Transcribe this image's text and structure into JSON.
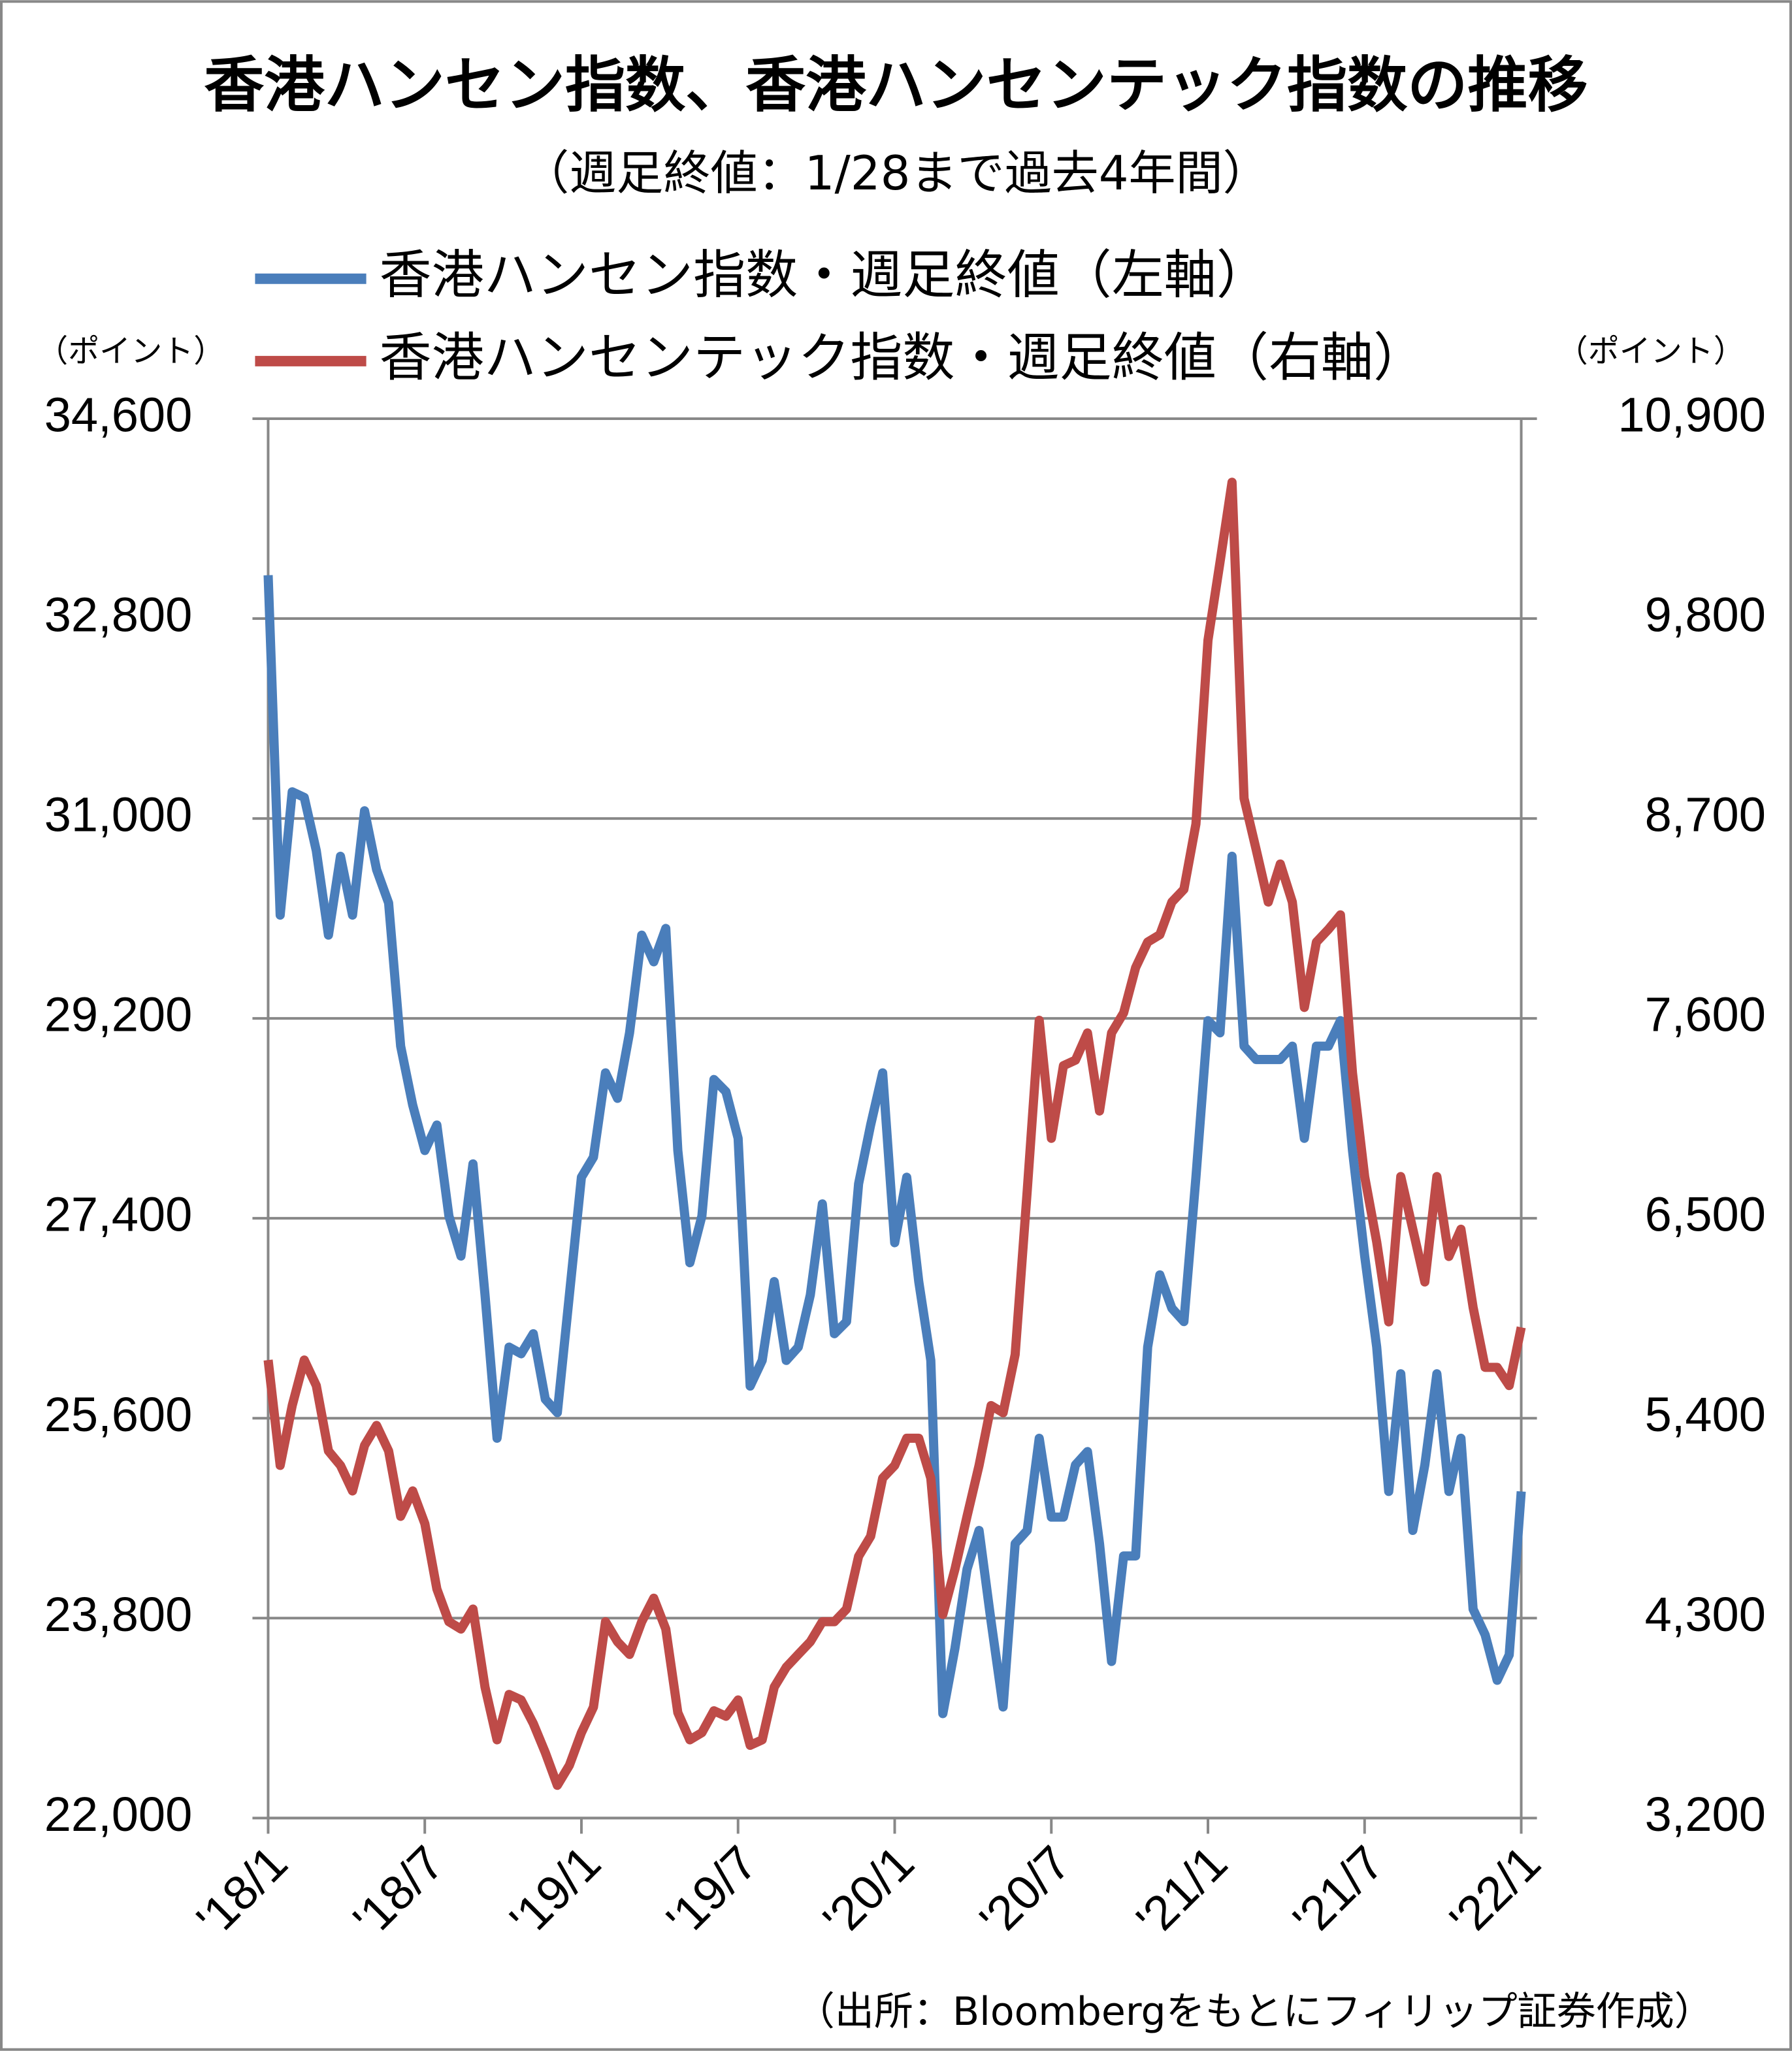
{
  "chart_data": {
    "type": "line",
    "title": "香港ハンセン指数、香港ハンセンテック指数の推移",
    "subtitle": "（週足終値：1/28まで過去4年間）",
    "y_axis_label": "（ポイント）",
    "y2_axis_label": "（ポイント）",
    "source": "（出所：Bloombergをもとにフィリップ証券作成）",
    "categories": [
      "'18/1",
      null,
      null,
      null,
      null,
      null,
      null,
      null,
      null,
      null,
      null,
      null,
      null,
      "'18/7",
      null,
      null,
      null,
      null,
      null,
      null,
      null,
      null,
      null,
      null,
      null,
      null,
      "'19/1",
      null,
      null,
      null,
      null,
      null,
      null,
      null,
      null,
      null,
      null,
      null,
      null,
      "'19/7",
      null,
      null,
      null,
      null,
      null,
      null,
      null,
      null,
      null,
      null,
      null,
      null,
      "'20/1",
      null,
      null,
      null,
      null,
      null,
      null,
      null,
      null,
      null,
      null,
      null,
      null,
      "'20/7",
      null,
      null,
      null,
      null,
      null,
      null,
      null,
      null,
      null,
      null,
      null,
      null,
      "'21/1",
      null,
      null,
      null,
      null,
      null,
      null,
      null,
      null,
      null,
      null,
      null,
      null,
      "'21/7",
      null,
      null,
      null,
      null,
      null,
      null,
      null,
      null,
      null,
      null,
      null,
      null,
      "'22/1"
    ],
    "series": [
      {
        "name": "香港ハンセン指数・週足終値（左軸）",
        "color": "#4a7ebb",
        "axis": "y",
        "values": [
          33190,
          30130,
          31240,
          31190,
          30710,
          29950,
          30660,
          30130,
          31070,
          30540,
          30240,
          28950,
          28420,
          28010,
          28240,
          27420,
          27060,
          27890,
          26710,
          25420,
          26240,
          26180,
          26360,
          25770,
          25650,
          26710,
          27770,
          27950,
          28710,
          28480,
          29070,
          29950,
          29710,
          30010,
          28010,
          27000,
          27420,
          28650,
          28540,
          28120,
          25890,
          26120,
          26830,
          26120,
          26240,
          26710,
          27530,
          26360,
          26470,
          27710,
          28240,
          28710,
          27180,
          27770,
          26830,
          26120,
          22940,
          23530,
          24240,
          24590,
          23770,
          23000,
          24470,
          24590,
          25420,
          24710,
          24710,
          25180,
          25300,
          24470,
          23410,
          24360,
          24360,
          26240,
          26890,
          26590,
          26470,
          27770,
          29180,
          29070,
          30660,
          28950,
          28830,
          28830,
          28830,
          28950,
          28120,
          28950,
          28950,
          29180,
          28010,
          27060,
          26240,
          24940,
          26000,
          24590,
          25180,
          26000,
          24940,
          25420,
          23880,
          23650,
          23240,
          23470,
          24940
        ]
      },
      {
        "name": "香港ハンセンテック指数・週足終値（右軸）",
        "color": "#be4b48",
        "axis": "y2",
        "values": [
          5720,
          5140,
          5470,
          5720,
          5580,
          5220,
          5140,
          5000,
          5250,
          5360,
          5220,
          4860,
          5000,
          4820,
          4460,
          4280,
          4240,
          4350,
          3920,
          3630,
          3880,
          3850,
          3720,
          3560,
          3380,
          3490,
          3670,
          3810,
          4280,
          4170,
          4100,
          4280,
          4410,
          4240,
          3780,
          3630,
          3670,
          3790,
          3760,
          3850,
          3600,
          3630,
          3920,
          4030,
          4100,
          4170,
          4280,
          4280,
          4350,
          4640,
          4750,
          5070,
          5140,
          5290,
          5290,
          5070,
          4320,
          4570,
          4860,
          5140,
          5470,
          5430,
          5750,
          6650,
          7590,
          6940,
          7340,
          7370,
          7520,
          7090,
          7520,
          7630,
          7880,
          8020,
          8060,
          8240,
          8310,
          8670,
          9680,
          10110,
          10550,
          8810,
          8530,
          8240,
          8450,
          8240,
          7660,
          8020,
          8090,
          8170,
          7300,
          6730,
          6370,
          5930,
          6730,
          6440,
          6150,
          6730,
          6290,
          6440,
          6010,
          5680,
          5680,
          5580,
          5900
        ]
      }
    ],
    "ylim": [
      22000,
      34600
    ],
    "yticks": [
      {
        "value": 22000,
        "label": "22,000"
      },
      {
        "value": 23800,
        "label": "23,800"
      },
      {
        "value": 25600,
        "label": "25,600"
      },
      {
        "value": 27400,
        "label": "27,400"
      },
      {
        "value": 29200,
        "label": "29,200"
      },
      {
        "value": 31000,
        "label": "31,000"
      },
      {
        "value": 32800,
        "label": "32,800"
      },
      {
        "value": 34600,
        "label": "34,600"
      }
    ],
    "y2lim": [
      3200,
      10900
    ],
    "y2ticks": [
      {
        "value": 3200,
        "label": "3,200"
      },
      {
        "value": 4300,
        "label": "4,300"
      },
      {
        "value": 5400,
        "label": "5,400"
      },
      {
        "value": 6500,
        "label": "6,500"
      },
      {
        "value": 7600,
        "label": "7,600"
      },
      {
        "value": 8700,
        "label": "8,700"
      },
      {
        "value": 9800,
        "label": "9,800"
      },
      {
        "value": 10900,
        "label": "10,900"
      }
    ],
    "grid": true,
    "legend": "top"
  }
}
